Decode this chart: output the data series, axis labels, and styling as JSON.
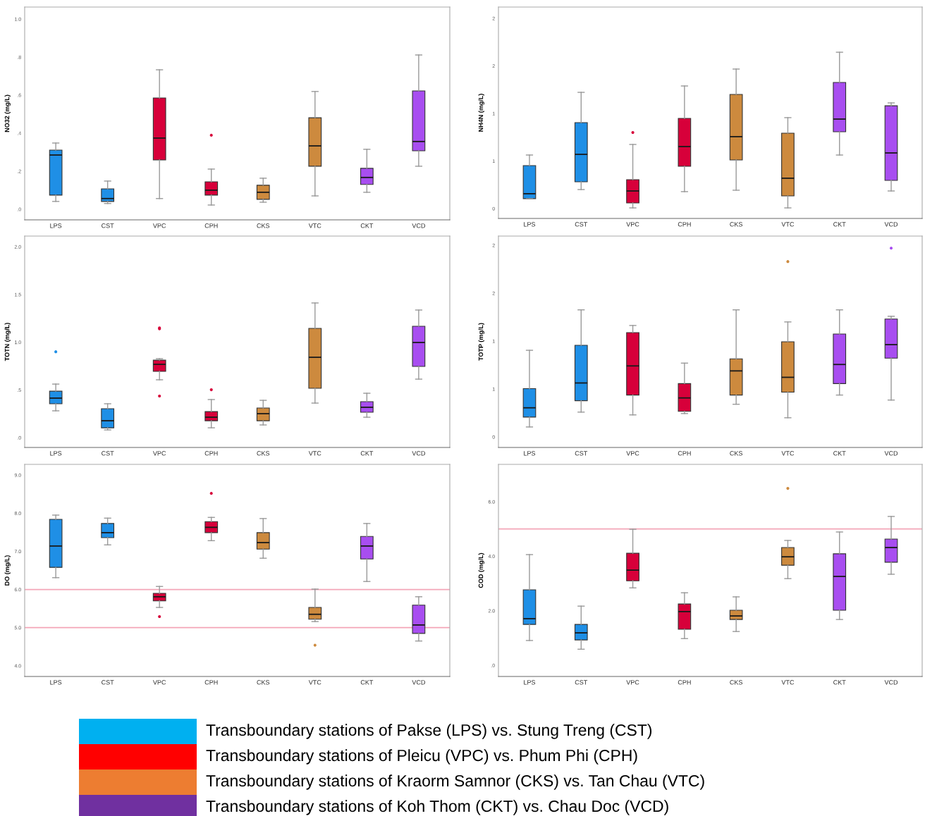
{
  "chart_data": [
    {
      "type": "box",
      "ylabel": "NO32 (mg/L)",
      "categories": [
        "LPS",
        "CST",
        "VPC",
        "CPH",
        "CKS",
        "VTC",
        "CKT",
        "VCD"
      ],
      "colors": [
        "#1f8fe6",
        "#1f8fe6",
        "#d7003a",
        "#d7003a",
        "#cd8a3e",
        "#cd8a3e",
        "#a84ef0",
        "#a84ef0"
      ],
      "ylim": [
        -0.056,
        1.063
      ],
      "yticks": [
        {
          "value": 0,
          "label": ".0"
        },
        {
          "value": 0.2,
          "label": ".2"
        },
        {
          "value": 0.4,
          "label": ".4"
        },
        {
          "value": 0.6,
          "label": ".6"
        },
        {
          "value": 0.8,
          "label": ".8"
        },
        {
          "value": 1,
          "label": "1.0"
        }
      ],
      "grid": false,
      "boxes": [
        {
          "low": 0.041,
          "q1": 0.074,
          "median": 0.285,
          "q3": 0.311,
          "high": 0.348
        },
        {
          "low": 0.03,
          "q1": 0.041,
          "median": 0.056,
          "q3": 0.107,
          "high": 0.148
        },
        {
          "low": 0.056,
          "q1": 0.259,
          "median": 0.374,
          "q3": 0.585,
          "high": 0.733
        },
        {
          "low": 0.022,
          "q1": 0.074,
          "median": 0.1,
          "q3": 0.144,
          "high": 0.211,
          "outliers": [
            0.389
          ]
        },
        {
          "low": 0.037,
          "q1": 0.052,
          "median": 0.089,
          "q3": 0.126,
          "high": 0.163
        },
        {
          "low": 0.07,
          "q1": 0.226,
          "median": 0.333,
          "q3": 0.481,
          "high": 0.619
        },
        {
          "low": 0.089,
          "q1": 0.13,
          "median": 0.167,
          "q3": 0.215,
          "high": 0.315
        },
        {
          "low": 0.226,
          "q1": 0.307,
          "median": 0.356,
          "q3": 0.622,
          "high": 0.811
        }
      ]
    },
    {
      "type": "box",
      "ylabel": "NH4N (mg/L)",
      "categories": [
        "LPS",
        "CST",
        "VPC",
        "CPH",
        "CKS",
        "VTC",
        "CKT",
        "VCD"
      ],
      "colors": [
        "#1f8fe6",
        "#1f8fe6",
        "#d7003a",
        "#d7003a",
        "#cd8a3e",
        "#cd8a3e",
        "#a84ef0",
        "#a84ef0"
      ],
      "ylim": [
        -0.104,
        2.119
      ],
      "yticks": [
        0,
        {
          "value": 0.5,
          "label": "1"
        },
        1,
        {
          "value": 1.5,
          "label": "2"
        },
        2
      ],
      "grid": false,
      "boxes": [
        {
          "low": 0.104,
          "q1": 0.104,
          "median": 0.156,
          "q3": 0.452,
          "high": 0.563
        },
        {
          "low": 0.2,
          "q1": 0.281,
          "median": 0.57,
          "q3": 0.904,
          "high": 1.222
        },
        {
          "low": 0.007,
          "q1": 0.059,
          "median": 0.185,
          "q3": 0.304,
          "high": 0.674,
          "outliers": [
            0.8
          ]
        },
        {
          "low": 0.178,
          "q1": 0.444,
          "median": 0.652,
          "q3": 0.948,
          "high": 1.289
        },
        {
          "low": 0.193,
          "q1": 0.511,
          "median": 0.756,
          "q3": 1.2,
          "high": 1.467
        },
        {
          "low": 0.007,
          "q1": 0.133,
          "median": 0.319,
          "q3": 0.793,
          "high": 0.956
        },
        {
          "low": 0.563,
          "q1": 0.807,
          "median": 0.941,
          "q3": 1.326,
          "high": 1.644
        },
        {
          "low": 0.185,
          "q1": 0.296,
          "median": 0.585,
          "q3": 1.081,
          "high": 1.111
        }
      ]
    },
    {
      "type": "box",
      "ylabel": "TOTN (mg/L)",
      "categories": [
        "LPS",
        "CST",
        "VPC",
        "CPH",
        "CKS",
        "VTC",
        "CKT",
        "VCD"
      ],
      "colors": [
        "#1f8fe6",
        "#1f8fe6",
        "#d7003a",
        "#d7003a",
        "#cd8a3e",
        "#cd8a3e",
        "#a84ef0",
        "#a84ef0"
      ],
      "ylim": [
        -0.103,
        2.112
      ],
      "yticks": [
        {
          "value": 0,
          "label": ".0"
        },
        {
          "value": 0.5,
          "label": ".5"
        },
        {
          "value": 1,
          "label": "1.0"
        },
        1.5,
        {
          "value": 2,
          "label": "2.0"
        }
      ],
      "grid": false,
      "boxes": [
        {
          "low": 0.281,
          "q1": 0.355,
          "median": 0.414,
          "q3": 0.487,
          "high": 0.561,
          "outliers": [
            0.9
          ]
        },
        {
          "low": 0.081,
          "q1": 0.103,
          "median": 0.177,
          "q3": 0.303,
          "high": 0.355
        },
        {
          "low": 0.606,
          "q1": 0.694,
          "median": 0.768,
          "q3": 0.812,
          "high": 0.827,
          "outliers": [
            1.15,
            1.14,
            0.436
          ]
        },
        {
          "low": 0.103,
          "q1": 0.177,
          "median": 0.214,
          "q3": 0.273,
          "high": 0.399,
          "outliers": [
            0.502
          ]
        },
        {
          "low": 0.133,
          "q1": 0.177,
          "median": 0.251,
          "q3": 0.31,
          "high": 0.391
        },
        {
          "low": 0.362,
          "q1": 0.517,
          "median": 0.842,
          "q3": 1.145,
          "high": 1.411
        },
        {
          "low": 0.214,
          "q1": 0.266,
          "median": 0.318,
          "q3": 0.377,
          "high": 0.465
        },
        {
          "low": 0.613,
          "q1": 0.746,
          "median": 0.997,
          "q3": 1.167,
          "high": 1.337
        }
      ]
    },
    {
      "type": "box",
      "ylabel": "TOTP (mg/L)",
      "categories": [
        "LPS",
        "CST",
        "VPC",
        "CPH",
        "CKS",
        "VTC",
        "CKT",
        "VCD"
      ],
      "colors": [
        "#1f8fe6",
        "#1f8fe6",
        "#d7003a",
        "#d7003a",
        "#cd8a3e",
        "#cd8a3e",
        "#a84ef0",
        "#a84ef0"
      ],
      "ylim": [
        -0.11,
        2.096
      ],
      "yticks": [
        0,
        {
          "value": 0.5,
          "label": "1"
        },
        1,
        {
          "value": 1.5,
          "label": "2"
        },
        2
      ],
      "grid": false,
      "boxes": [
        {
          "low": 0.104,
          "q1": 0.207,
          "median": 0.304,
          "q3": 0.504,
          "high": 0.904
        },
        {
          "low": 0.259,
          "q1": 0.378,
          "median": 0.563,
          "q3": 0.956,
          "high": 1.326
        },
        {
          "low": 0.23,
          "q1": 0.437,
          "median": 0.741,
          "q3": 1.089,
          "high": 1.163
        },
        {
          "low": 0.244,
          "q1": 0.267,
          "median": 0.407,
          "q3": 0.556,
          "high": 0.77
        },
        {
          "low": 0.341,
          "q1": 0.437,
          "median": 0.689,
          "q3": 0.815,
          "high": 1.326
        },
        {
          "low": 0.2,
          "q1": 0.467,
          "median": 0.622,
          "q3": 0.993,
          "high": 1.2,
          "outliers": [
            1.83
          ]
        },
        {
          "low": 0.437,
          "q1": 0.556,
          "median": 0.756,
          "q3": 1.074,
          "high": 1.326
        },
        {
          "low": 0.385,
          "q1": 0.822,
          "median": 0.963,
          "q3": 1.23,
          "high": 1.259,
          "outliers": [
            1.97
          ]
        }
      ]
    },
    {
      "type": "box",
      "ylabel": "DO (mg/L)",
      "categories": [
        "LPS",
        "CST",
        "VPC",
        "CPH",
        "CKS",
        "VTC",
        "CKT",
        "VCD"
      ],
      "colors": [
        "#1f8fe6",
        "#1f8fe6",
        "#d7003a",
        "#d7003a",
        "#cd8a3e",
        "#cd8a3e",
        "#a84ef0",
        "#a84ef0"
      ],
      "ylim": [
        3.72,
        9.28
      ],
      "yticks": [
        {
          "value": 4,
          "label": "4.0"
        },
        {
          "value": 5,
          "label": "5.0"
        },
        {
          "value": 6,
          "label": "6.0"
        },
        {
          "value": 7,
          "label": "7.0"
        },
        {
          "value": 8,
          "label": "8.0"
        },
        {
          "value": 9,
          "label": "9.0"
        }
      ],
      "grid": false,
      "ref_lines": [
        {
          "axis": "y",
          "value": 6.0,
          "color": "#f4a6b8"
        },
        {
          "axis": "y",
          "value": 5.0,
          "color": "#f4a6b8"
        }
      ],
      "boxes": [
        {
          "low": 6.31,
          "q1": 6.58,
          "median": 7.14,
          "q3": 7.84,
          "high": 7.95
        },
        {
          "low": 7.17,
          "q1": 7.36,
          "median": 7.49,
          "q3": 7.73,
          "high": 7.87
        },
        {
          "low": 5.53,
          "q1": 5.7,
          "median": 5.81,
          "q3": 5.9,
          "high": 6.08,
          "outliers": [
            5.29
          ]
        },
        {
          "low": 7.28,
          "q1": 7.49,
          "median": 7.63,
          "q3": 7.78,
          "high": 7.89,
          "outliers": [
            8.52
          ]
        },
        {
          "low": 6.82,
          "q1": 7.06,
          "median": 7.23,
          "q3": 7.49,
          "high": 7.86
        },
        {
          "low": 5.16,
          "q1": 5.22,
          "median": 5.35,
          "q3": 5.53,
          "high": 6.01,
          "outliers": [
            4.54
          ]
        },
        {
          "low": 6.21,
          "q1": 6.8,
          "median": 7.14,
          "q3": 7.39,
          "high": 7.73
        },
        {
          "low": 4.65,
          "q1": 4.85,
          "median": 5.07,
          "q3": 5.59,
          "high": 5.81
        }
      ]
    },
    {
      "type": "box",
      "ylabel": "COD (mg/L)",
      "categories": [
        "LPS",
        "CST",
        "VPC",
        "CPH",
        "CKS",
        "VTC",
        "CKT",
        "VCD"
      ],
      "colors": [
        "#1f8fe6",
        "#1f8fe6",
        "#d7003a",
        "#d7003a",
        "#cd8a3e",
        "#cd8a3e",
        "#a84ef0",
        "#a84ef0"
      ],
      "ylim": [
        -0.41,
        7.37
      ],
      "yticks": [
        {
          "value": 0,
          "label": ".0"
        },
        {
          "value": 2,
          "label": "2.0"
        },
        {
          "value": 4,
          "label": "4.0"
        },
        {
          "value": 6,
          "label": "6.0"
        }
      ],
      "grid": false,
      "ref_lines": [
        {
          "axis": "y",
          "value": 5.0,
          "color": "#f4a6b8"
        }
      ],
      "boxes": [
        {
          "low": 0.91,
          "q1": 1.5,
          "median": 1.71,
          "q3": 2.77,
          "high": 4.06
        },
        {
          "low": 0.59,
          "q1": 0.93,
          "median": 1.19,
          "q3": 1.5,
          "high": 2.17
        },
        {
          "low": 2.84,
          "q1": 3.1,
          "median": 3.49,
          "q3": 4.11,
          "high": 4.99
        },
        {
          "low": 0.98,
          "q1": 1.32,
          "median": 1.97,
          "q3": 2.25,
          "high": 2.66
        },
        {
          "low": 1.24,
          "q1": 1.68,
          "median": 1.81,
          "q3": 2.02,
          "high": 2.51
        },
        {
          "low": 3.18,
          "q1": 3.67,
          "median": 3.98,
          "q3": 4.32,
          "high": 4.58,
          "outliers": [
            6.49
          ]
        },
        {
          "low": 1.68,
          "q1": 2.02,
          "median": 3.26,
          "q3": 4.09,
          "high": 4.89
        },
        {
          "low": 3.34,
          "q1": 3.78,
          "median": 4.32,
          "q3": 4.63,
          "high": 5.46
        }
      ]
    },
    {
      "type": "other",
      "categories": [
        "Transboundary stations of Pakse (LPS) vs. Stung Treng (CST)",
        "Transboundary stations of Pleicu (VPC) vs. Phum Phi (CPH)",
        "Transboundary stations of Kraorm Samnor (CKS) vs. Tan Chau (VTC)",
        "Transboundary stations of Koh Thom (CKT) vs. Chau Doc (VCD)"
      ],
      "colors": [
        "#00b0f0",
        "#ff0000",
        "#ed7d31",
        "#7030a0"
      ]
    }
  ]
}
